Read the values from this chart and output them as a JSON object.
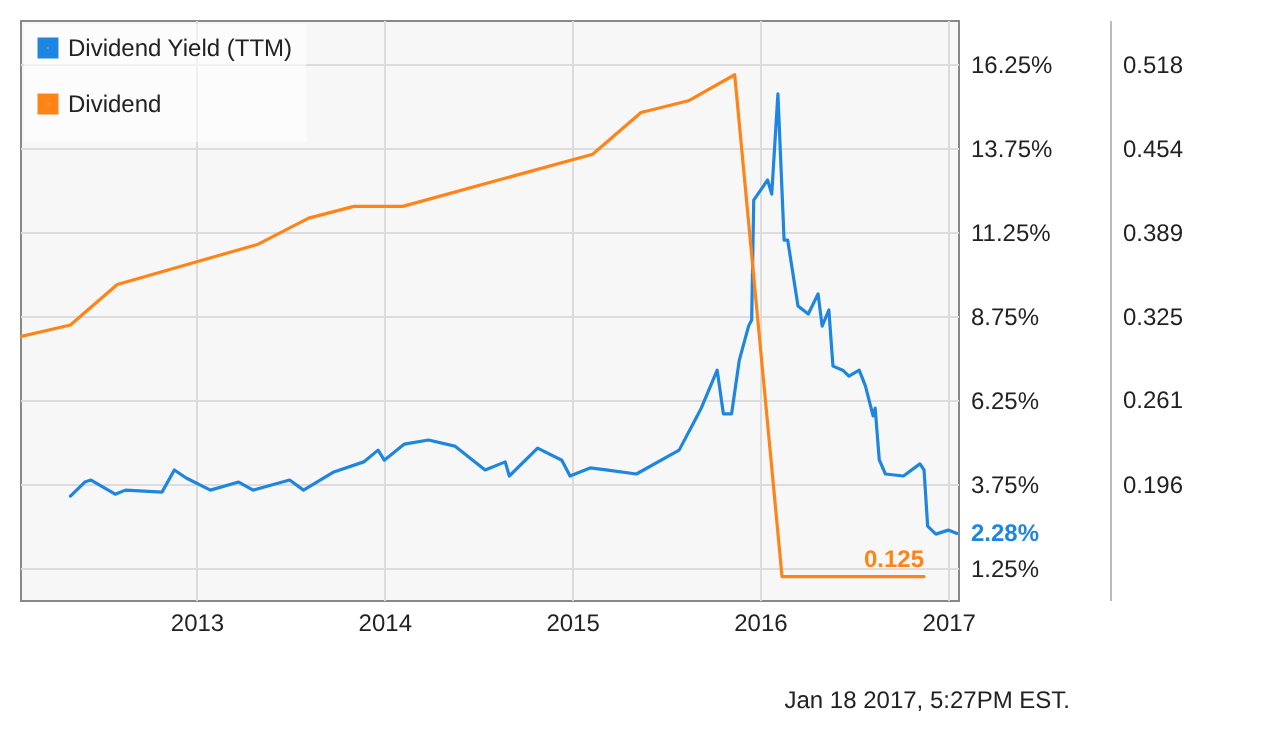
{
  "chart_data": {
    "type": "line",
    "series": [
      {
        "name": "Dividend Yield (TTM)",
        "color": "#1f86e0",
        "x": [
          "2012-05-01",
          "2012-05-29",
          "2012-06-10",
          "2012-07-27",
          "2012-08-16",
          "2012-10-26",
          "2012-11-19",
          "2012-12-12",
          "2013-01-28",
          "2013-03-24",
          "2013-04-21",
          "2013-07-01",
          "2013-07-28",
          "2013-09-25",
          "2013-11-22",
          "2013-12-20",
          "2014-01-01",
          "2014-02-09",
          "2014-03-28",
          "2014-05-18",
          "2014-07-16",
          "2014-08-24",
          "2014-09-01",
          "2014-10-26",
          "2014-12-12",
          "2014-12-28",
          "2015-02-05",
          "2015-03-08",
          "2015-05-06",
          "2015-07-28",
          "2015-08-28",
          "2015-09-09",
          "2015-10-10",
          "2015-10-22",
          "2015-11-07",
          "2015-11-22",
          "2015-12-10",
          "2015-12-16",
          "2015-12-20",
          "2016-01-16",
          "2016-01-24",
          "2016-02-05",
          "2016-02-17",
          "2016-02-24",
          "2016-03-15",
          "2016-04-04",
          "2016-04-23",
          "2016-05-01",
          "2016-05-14",
          "2016-05-22",
          "2016-06-10",
          "2016-06-22",
          "2016-07-12",
          "2016-07-24",
          "2016-08-08",
          "2016-08-12",
          "2016-08-20",
          "2016-09-01",
          "2016-10-06",
          "2016-11-07",
          "2016-11-15",
          "2016-11-22",
          "2016-12-08",
          "2017-01-01",
          "2017-01-18"
        ],
        "values": [
          3.39,
          3.81,
          3.87,
          3.45,
          3.57,
          3.51,
          4.17,
          3.93,
          3.57,
          3.81,
          3.57,
          3.87,
          3.57,
          4.11,
          4.41,
          4.76,
          4.46,
          4.94,
          5.06,
          4.88,
          4.17,
          4.41,
          3.99,
          4.82,
          4.46,
          3.99,
          4.23,
          4.17,
          4.05,
          4.76,
          5.66,
          6.01,
          7.14,
          5.84,
          5.84,
          7.44,
          8.45,
          8.63,
          12.2,
          12.8,
          12.38,
          15.36,
          11.01,
          11.01,
          9.05,
          8.81,
          9.41,
          8.45,
          8.93,
          7.26,
          7.14,
          6.96,
          7.14,
          6.67,
          5.78,
          6.01,
          4.47,
          4.05,
          3.99,
          4.35,
          4.17,
          2.5,
          2.26,
          2.38,
          2.28
        ],
        "value_labels": [
          null,
          null,
          null,
          null,
          null,
          null,
          null,
          null,
          null,
          null,
          null,
          null,
          null,
          null,
          null,
          null,
          null,
          null,
          null,
          null,
          null,
          null,
          null,
          null,
          null,
          null,
          null,
          null,
          null,
          null,
          null,
          null,
          null,
          null,
          null,
          null,
          null,
          null,
          null,
          null,
          null,
          null,
          null,
          null,
          null,
          null,
          null,
          null,
          null,
          null,
          null,
          null,
          null,
          null,
          null,
          null,
          null,
          null,
          null,
          null,
          null,
          null,
          null,
          null,
          "2.28%"
        ]
      },
      {
        "name": "Dividend",
        "color": "#ff8418",
        "axis": "y2",
        "x": [
          "2012-01-24",
          "2012-05-01",
          "2012-07-31",
          "2013-05-01",
          "2013-08-07",
          "2013-11-03",
          "2014-02-06",
          "2015-02-10",
          "2015-05-15",
          "2015-08-15",
          "2015-11-13",
          "2016-02-13",
          "2016-11-15"
        ],
        "values": [
          0.309,
          0.318,
          0.349,
          0.38,
          0.4,
          0.409,
          0.409,
          0.449,
          0.481,
          0.49,
          0.51,
          0.125,
          0.125
        ],
        "value_labels": [
          null,
          null,
          null,
          null,
          null,
          null,
          null,
          null,
          null,
          null,
          null,
          null,
          "0.125"
        ]
      }
    ],
    "xlim": [
      "2012-01-24",
      "2017-01-20"
    ],
    "xticks": [
      "2013",
      "2014",
      "2015",
      "2016",
      "2017"
    ],
    "ylim": [
      0.3,
      17.56
    ],
    "yticks": [
      {
        "value": 1.25,
        "label": "1.25%"
      },
      {
        "value": 3.75,
        "label": "3.75%"
      },
      {
        "value": 6.25,
        "label": "6.25%"
      },
      {
        "value": 8.75,
        "label": "8.75%"
      },
      {
        "value": 11.25,
        "label": "11.25%"
      },
      {
        "value": 13.75,
        "label": "13.75%"
      },
      {
        "value": 16.25,
        "label": "16.25%"
      }
    ],
    "y2lim": [
      0.107,
      0.552
    ],
    "y2ticks": [
      0.196,
      0.261,
      0.325,
      0.389,
      0.454,
      0.518
    ],
    "grid": true,
    "legend": "top left",
    "annotations": [
      "Jan 18 2017, 5:27PM EST."
    ]
  }
}
